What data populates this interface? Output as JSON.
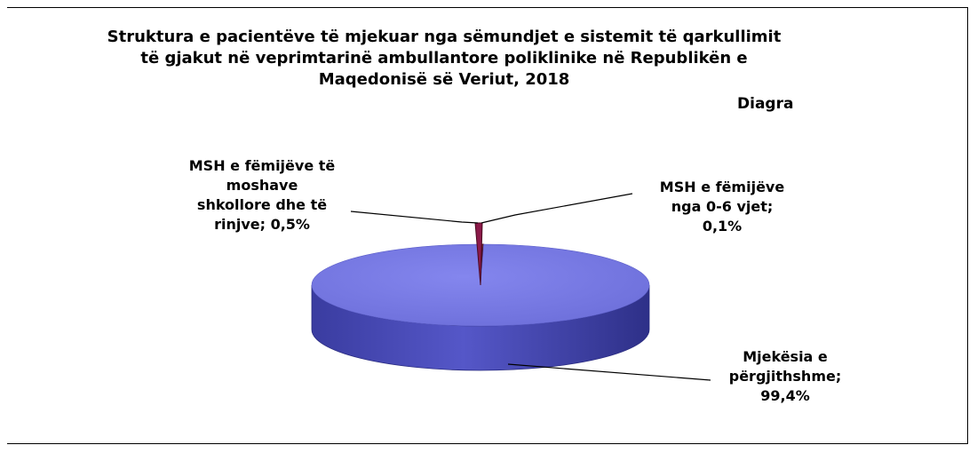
{
  "chart_data": {
    "type": "pie",
    "title": "Struktura e pacientëve të mjekuar nga sëmundjet e sistemit të qarkullimit të gjakut në veprimtarinë ambullantore poliklinike në Republikën e Maqedonisë së Veriut, 2018",
    "subtitle": "Diagra",
    "slices": [
      {
        "label": "Mjekësia e përgjithshme",
        "value": 99.4,
        "value_label": "99,4%",
        "label_lines": [
          "Mjekësia e",
          "përgjithshme;",
          "99,4%"
        ],
        "color": "#7b7de6"
      },
      {
        "label": "MSH e fëmijëve të moshave shkollore dhe të rinjve",
        "value": 0.5,
        "value_label": "0,5%",
        "label_lines": [
          "MSH e fëmijëve të",
          "moshave",
          "shkollore dhe të",
          "rinjve; 0,5%"
        ],
        "color": "#8b1a4a"
      },
      {
        "label": "MSH e fëmijëve nga 0-6 vjet",
        "value": 0.1,
        "value_label": "0,1%",
        "label_lines": [
          "MSH e fëmijëve",
          "nga 0-6 vjet;",
          "0,1%"
        ],
        "color": "#f2f2c0"
      }
    ],
    "legend": "none",
    "style": "3d-pie"
  }
}
